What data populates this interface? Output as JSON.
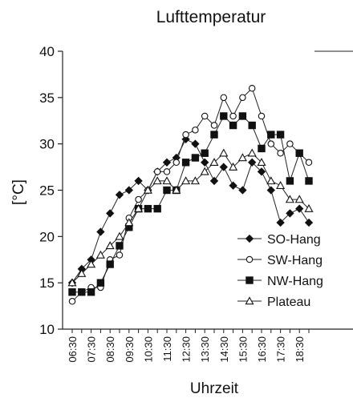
{
  "chart_data": {
    "type": "line",
    "title": "Lufttemperatur",
    "xlabel": "Uhrzeit",
    "ylabel": "[°C]",
    "ylim": [
      10,
      40
    ],
    "yticks": [
      10,
      15,
      20,
      25,
      30,
      35,
      40
    ],
    "x": [
      "06:30",
      "07:00",
      "07:30",
      "08:00",
      "08:30",
      "09:00",
      "09:30",
      "10:00",
      "10:30",
      "11:00",
      "11:30",
      "12:00",
      "12:30",
      "13:00",
      "13:30",
      "14:00",
      "14:30",
      "15:00",
      "15:30",
      "16:00",
      "16:30",
      "17:00",
      "17:30",
      "18:00",
      "18:30",
      "19:00"
    ],
    "xticklabels": [
      "06:30",
      "07:30",
      "08:30",
      "09:30",
      "10:30",
      "11:30",
      "12:30",
      "13:30",
      "14:30",
      "15:30",
      "16:30",
      "17:30",
      "18:30"
    ],
    "grid": false,
    "legend_position": "bottom-right",
    "series": [
      {
        "name": "SO-Hang",
        "marker": "diamond-filled",
        "values": [
          15,
          16.5,
          17.5,
          20.5,
          22.5,
          24.5,
          25,
          26,
          25,
          27,
          28,
          28.5,
          30.5,
          30,
          28,
          26,
          27.5,
          25.5,
          25,
          28,
          27,
          25,
          21.5,
          22.5,
          23,
          21.5
        ]
      },
      {
        "name": "SW-Hang",
        "marker": "circle-open",
        "values": [
          13,
          14,
          14.5,
          14.5,
          17.5,
          18,
          22,
          24,
          25,
          27,
          27,
          28,
          31,
          31.5,
          33,
          32,
          35,
          33,
          35,
          36,
          33,
          30,
          29,
          30,
          29,
          28
        ]
      },
      {
        "name": "NW-Hang",
        "marker": "square-filled",
        "values": [
          14,
          14,
          14,
          15,
          17,
          19,
          21,
          23,
          23,
          23,
          25,
          25,
          28,
          28.5,
          29,
          31,
          33,
          32,
          33,
          32,
          29.5,
          31,
          31,
          26,
          29,
          26
        ]
      },
      {
        "name": "Plateau",
        "marker": "triangle-open",
        "values": [
          15,
          16,
          17,
          18,
          19,
          20,
          21.5,
          23,
          25,
          26,
          26,
          25,
          26,
          26,
          27,
          28,
          29,
          27.5,
          28.5,
          29,
          28,
          26,
          25.5,
          24,
          24,
          23
        ]
      }
    ]
  }
}
